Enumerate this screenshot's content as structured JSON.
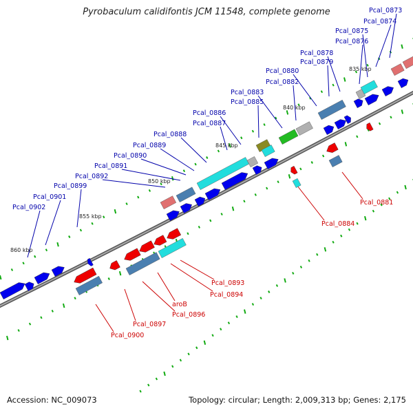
{
  "title": "Pyrobaculum calidifontis JCM 11548, complete genome",
  "footer": {
    "accession": "Accession: NC_009073",
    "summary": "Topology: circular; Length: 2,009,313 bp; Genes: 2,175"
  },
  "colors": {
    "forward_gene": "#0000ee",
    "reverse_gene": "#ee0000",
    "rna_cyan": "#22dddd",
    "steel_blue": "#4a7fb0",
    "green": "#22bb22",
    "olive": "#8a8a22",
    "pink": "#e07070",
    "gray": "#b0b0b0",
    "backbone": "#888888",
    "label_blue": "#0000aa",
    "label_red": "#cc0000",
    "tick_green": "#11aa11"
  },
  "scale_labels": [
    "835 kbp",
    "840 kbp",
    "845 kbp",
    "850 kbp",
    "855 kbp",
    "860 kbp"
  ],
  "forward_labels": [
    "Pcal_0873",
    "Pcal_0874",
    "Pcal_0875",
    "Pcal_0876",
    "Pcal_0878",
    "Pcal_0879",
    "Pcal_0880",
    "Pcal_0882",
    "Pcal_0883",
    "Pcal_0885",
    "Pcal_0886",
    "Pcal_0887",
    "Pcal_0888",
    "Pcal_0889",
    "Pcal_0890",
    "Pcal_0891",
    "Pcal_0892",
    "Pcal_0899",
    "Pcal_0901",
    "Pcal_0902"
  ],
  "reverse_labels": [
    "Pcal_0881",
    "Pcal_0884",
    "Pcal_0893",
    "Pcal_0894",
    "aroB",
    "Pcal_0896",
    "Pcal_0897",
    "Pcal_0900"
  ]
}
